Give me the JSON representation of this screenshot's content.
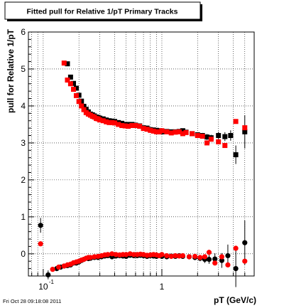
{
  "chart_data": {
    "type": "scatter",
    "title": "Fitted pull for Relative 1/pT  Primary Tracks",
    "xlabel": "pT (GeV/c)",
    "ylabel": "pull for Relative 1/pT",
    "timestamp": "Fri Oct 28 09:18:08 2011",
    "x_scale": "log",
    "xlim": [
      0.075,
      6.0
    ],
    "ylim": [
      -0.6,
      6.0
    ],
    "grid": true,
    "x_ticks": [
      {
        "value": 0.1,
        "label": "10",
        "exp": "-1"
      },
      {
        "value": 1,
        "label": "1",
        "exp": ""
      }
    ],
    "y_ticks": [
      {
        "value": 0,
        "label": "0"
      },
      {
        "value": 1,
        "label": "1"
      },
      {
        "value": 2,
        "label": "2"
      },
      {
        "value": 3,
        "label": "3"
      },
      {
        "value": 4,
        "label": "4"
      },
      {
        "value": 5,
        "label": "5"
      },
      {
        "value": 6,
        "label": "6"
      }
    ],
    "colors": {
      "series_black": "#000000",
      "series_red": "#ff0000"
    },
    "series": [
      {
        "color": "#000000",
        "marker": "square",
        "x": [
          0.16,
          0.17,
          0.18,
          0.19,
          0.2,
          0.21,
          0.22,
          0.23,
          0.24,
          0.25,
          0.26,
          0.27,
          0.28,
          0.29,
          0.3,
          0.32,
          0.34,
          0.36,
          0.38,
          0.4,
          0.43,
          0.46,
          0.49,
          0.52,
          0.56,
          0.6,
          0.65,
          0.7,
          0.75,
          0.8,
          0.85,
          0.9,
          0.95,
          1.0,
          1.1,
          1.2,
          1.3,
          1.4,
          1.5,
          1.6,
          1.8,
          2.0,
          2.2,
          2.4,
          2.6,
          3.0,
          3.4,
          3.8,
          4.2,
          5.0
        ],
        "y": [
          5.14,
          4.78,
          4.61,
          4.48,
          4.29,
          4.13,
          3.99,
          3.91,
          3.84,
          3.78,
          3.76,
          3.73,
          3.7,
          3.69,
          3.67,
          3.65,
          3.62,
          3.6,
          3.59,
          3.58,
          3.55,
          3.53,
          3.5,
          3.5,
          3.5,
          3.48,
          3.46,
          3.41,
          3.4,
          3.36,
          3.35,
          3.34,
          3.33,
          3.3,
          3.31,
          3.3,
          3.3,
          3.31,
          3.33,
          3.29,
          3.25,
          3.22,
          3.2,
          3.16,
          3.14,
          3.2,
          3.17,
          3.2,
          2.68,
          3.3
        ],
        "err": [
          0.03,
          0.03,
          0.03,
          0.03,
          0.03,
          0.03,
          0.03,
          0.03,
          0.03,
          0.03,
          0.03,
          0.03,
          0.03,
          0.03,
          0.03,
          0.03,
          0.03,
          0.03,
          0.03,
          0.03,
          0.03,
          0.03,
          0.03,
          0.03,
          0.03,
          0.03,
          0.03,
          0.03,
          0.04,
          0.04,
          0.04,
          0.04,
          0.04,
          0.04,
          0.04,
          0.05,
          0.05,
          0.05,
          0.05,
          0.06,
          0.06,
          0.06,
          0.07,
          0.08,
          0.08,
          0.1,
          0.12,
          0.14,
          0.25,
          0.45
        ]
      },
      {
        "color": "#ff0000",
        "marker": "square",
        "x": [
          0.15,
          0.16,
          0.17,
          0.18,
          0.19,
          0.2,
          0.21,
          0.22,
          0.23,
          0.24,
          0.25,
          0.26,
          0.27,
          0.28,
          0.29,
          0.3,
          0.32,
          0.34,
          0.36,
          0.38,
          0.4,
          0.43,
          0.46,
          0.49,
          0.52,
          0.56,
          0.6,
          0.65,
          0.7,
          0.75,
          0.8,
          0.85,
          0.9,
          0.95,
          1.0,
          1.1,
          1.2,
          1.3,
          1.4,
          1.5,
          1.6,
          1.8,
          2.0,
          2.2,
          2.4,
          2.6,
          3.0,
          3.4,
          4.2,
          5.0
        ],
        "y": [
          5.16,
          4.7,
          4.6,
          4.45,
          4.28,
          4.12,
          4.0,
          3.9,
          3.82,
          3.78,
          3.75,
          3.72,
          3.7,
          3.66,
          3.65,
          3.62,
          3.6,
          3.57,
          3.55,
          3.55,
          3.54,
          3.5,
          3.47,
          3.46,
          3.45,
          3.47,
          3.47,
          3.45,
          3.39,
          3.37,
          3.34,
          3.32,
          3.3,
          3.3,
          3.33,
          3.3,
          3.27,
          3.29,
          3.3,
          3.25,
          3.28,
          3.25,
          3.2,
          3.18,
          3.0,
          3.1,
          3.03,
          2.93,
          3.58,
          3.41
        ]
      },
      {
        "color": "#000000",
        "marker": "circle",
        "x": [
          0.095,
          0.11,
          0.13,
          0.14,
          0.15,
          0.16,
          0.17,
          0.18,
          0.19,
          0.2,
          0.21,
          0.22,
          0.23,
          0.24,
          0.25,
          0.27,
          0.29,
          0.31,
          0.33,
          0.35,
          0.38,
          0.41,
          0.44,
          0.47,
          0.5,
          0.54,
          0.58,
          0.62,
          0.66,
          0.7,
          0.75,
          0.8,
          0.85,
          0.9,
          0.95,
          1.0,
          1.1,
          1.2,
          1.3,
          1.4,
          1.5,
          1.7,
          1.9,
          2.1,
          2.3,
          2.5,
          2.8,
          3.2,
          3.6,
          4.2,
          5.0
        ],
        "y": [
          0.77,
          -0.57,
          -0.4,
          -0.36,
          -0.33,
          -0.32,
          -0.3,
          -0.25,
          -0.25,
          -0.22,
          -0.18,
          -0.15,
          -0.12,
          -0.13,
          -0.12,
          -0.1,
          -0.1,
          -0.08,
          -0.06,
          -0.05,
          -0.08,
          -0.06,
          -0.05,
          -0.06,
          -0.07,
          -0.04,
          -0.05,
          -0.05,
          -0.04,
          -0.05,
          -0.07,
          -0.05,
          -0.06,
          -0.07,
          -0.05,
          -0.07,
          -0.08,
          -0.06,
          -0.07,
          -0.05,
          -0.07,
          -0.08,
          -0.1,
          -0.12,
          -0.15,
          -0.15,
          -0.14,
          -0.18,
          -0.05,
          -0.4,
          0.3
        ],
        "err": [
          0.2,
          0.12,
          0.05,
          0.04,
          0.04,
          0.03,
          0.03,
          0.03,
          0.03,
          0.03,
          0.03,
          0.03,
          0.03,
          0.03,
          0.03,
          0.03,
          0.03,
          0.03,
          0.03,
          0.03,
          0.03,
          0.03,
          0.03,
          0.03,
          0.03,
          0.03,
          0.03,
          0.03,
          0.03,
          0.03,
          0.03,
          0.03,
          0.03,
          0.03,
          0.03,
          0.03,
          0.04,
          0.04,
          0.04,
          0.05,
          0.05,
          0.06,
          0.07,
          0.08,
          0.1,
          0.12,
          0.15,
          0.2,
          0.3,
          0.5,
          0.6
        ]
      },
      {
        "color": "#ff0000",
        "marker": "circle",
        "x": [
          0.095,
          0.12,
          0.135,
          0.15,
          0.16,
          0.17,
          0.18,
          0.19,
          0.2,
          0.21,
          0.22,
          0.23,
          0.24,
          0.25,
          0.27,
          0.29,
          0.31,
          0.33,
          0.35,
          0.38,
          0.41,
          0.44,
          0.47,
          0.5,
          0.54,
          0.58,
          0.62,
          0.66,
          0.7,
          0.75,
          0.8,
          0.85,
          0.9,
          0.95,
          1.0,
          1.1,
          1.2,
          1.3,
          1.4,
          1.5,
          1.7,
          1.9,
          2.1,
          2.3,
          2.5,
          2.8,
          3.2,
          3.6,
          4.2,
          5.0
        ],
        "y": [
          0.27,
          -0.42,
          -0.36,
          -0.33,
          -0.3,
          -0.28,
          -0.24,
          -0.22,
          -0.2,
          -0.17,
          -0.15,
          -0.12,
          -0.1,
          -0.1,
          -0.08,
          -0.07,
          -0.05,
          -0.03,
          -0.02,
          0.0,
          -0.02,
          -0.03,
          -0.02,
          -0.02,
          0.0,
          -0.02,
          -0.02,
          -0.01,
          -0.02,
          -0.04,
          -0.03,
          -0.02,
          -0.03,
          -0.05,
          -0.02,
          -0.05,
          -0.07,
          -0.05,
          -0.06,
          -0.05,
          -0.08,
          -0.07,
          -0.1,
          -0.08,
          0.04,
          -0.25,
          -0.08,
          -0.3,
          0.15,
          -0.2
        ]
      }
    ]
  }
}
